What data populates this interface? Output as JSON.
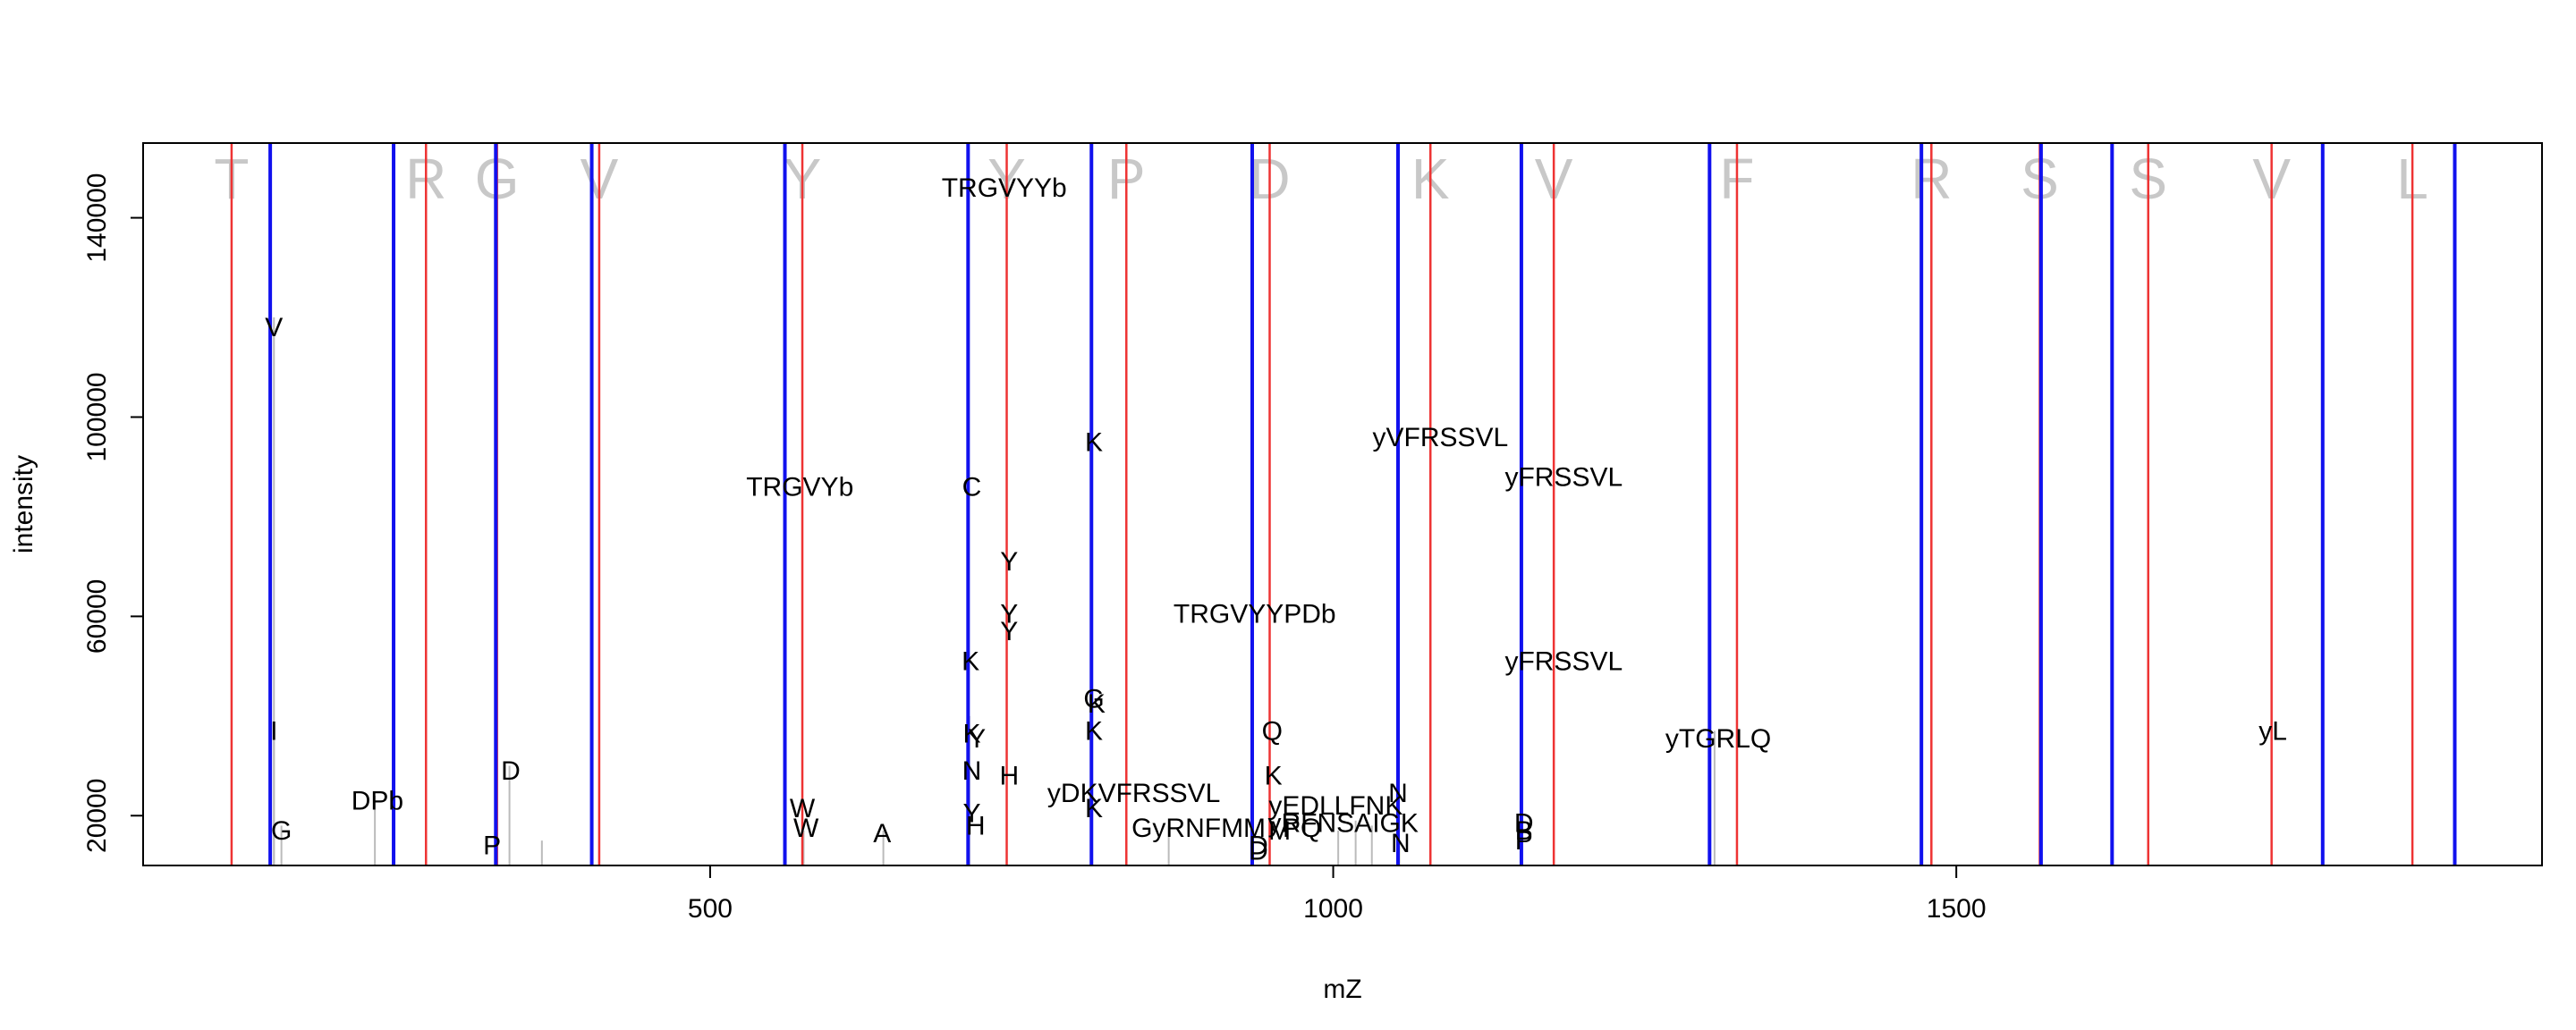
{
  "chart_data": {
    "type": "scatter",
    "title": "",
    "xlabel": "mZ",
    "ylabel": "intensity",
    "xlim": [
      45,
      1970
    ],
    "ylim": [
      10000,
      155000
    ],
    "xticks": [
      500,
      1000,
      1500
    ],
    "yticks": [
      20000,
      60000,
      100000,
      140000
    ],
    "colors": {
      "red_lines": "#ee3333",
      "blue_lines": "#1111ee",
      "peaks": "#bbbbbb",
      "sequence_letters": "#c8c8c8",
      "annotations": "#000000"
    },
    "sequence_letters": [
      {
        "x": 116,
        "label": "T"
      },
      {
        "x": 272,
        "label": "R"
      },
      {
        "x": 329,
        "label": "G"
      },
      {
        "x": 411,
        "label": "V"
      },
      {
        "x": 574,
        "label": "Y"
      },
      {
        "x": 738,
        "label": "Y"
      },
      {
        "x": 834,
        "label": "P"
      },
      {
        "x": 949,
        "label": "D"
      },
      {
        "x": 1078,
        "label": "K"
      },
      {
        "x": 1177,
        "label": "V"
      },
      {
        "x": 1324,
        "label": "F"
      },
      {
        "x": 1480,
        "label": "R"
      },
      {
        "x": 1567,
        "label": "S"
      },
      {
        "x": 1654,
        "label": "S"
      },
      {
        "x": 1753,
        "label": "V"
      },
      {
        "x": 1866,
        "label": "L"
      }
    ],
    "red_lines": [
      116,
      272,
      329,
      411,
      574,
      738,
      834,
      949,
      1078,
      1177,
      1324,
      1480,
      1567,
      1654,
      1753,
      1866
    ],
    "blue_lines": [
      147,
      246,
      328,
      405,
      560,
      707,
      806,
      935,
      1052,
      1151,
      1302,
      1472,
      1568,
      1625,
      1794,
      1900
    ],
    "peaks": [
      {
        "x": 150,
        "y": 120000
      },
      {
        "x": 150,
        "y": 38000
      },
      {
        "x": 156,
        "y": 18000
      },
      {
        "x": 231,
        "y": 24000
      },
      {
        "x": 339,
        "y": 30000
      },
      {
        "x": 365,
        "y": 15000
      },
      {
        "x": 575,
        "y": 17000
      },
      {
        "x": 639,
        "y": 17000
      },
      {
        "x": 708,
        "y": 40000
      },
      {
        "x": 868,
        "y": 18000
      },
      {
        "x": 1004,
        "y": 17000
      },
      {
        "x": 1018,
        "y": 19000
      },
      {
        "x": 1031,
        "y": 18000
      },
      {
        "x": 1053,
        "y": 15000
      },
      {
        "x": 1306,
        "y": 37000
      }
    ],
    "annotations": [
      {
        "x": 150,
        "y": 118000,
        "label": "V"
      },
      {
        "x": 150,
        "y": 37000,
        "label": "I"
      },
      {
        "x": 156,
        "y": 17000,
        "label": "G"
      },
      {
        "x": 233,
        "y": 23000,
        "label": "DPb"
      },
      {
        "x": 340,
        "y": 29000,
        "label": "D"
      },
      {
        "x": 325,
        "y": 14000,
        "label": "P"
      },
      {
        "x": 572,
        "y": 86000,
        "label": "TRGVYb"
      },
      {
        "x": 574,
        "y": 21500,
        "label": "W"
      },
      {
        "x": 577,
        "y": 17500,
        "label": "W"
      },
      {
        "x": 638,
        "y": 16500,
        "label": "A"
      },
      {
        "x": 736,
        "y": 146000,
        "label": "TRGVYYb"
      },
      {
        "x": 710,
        "y": 86000,
        "label": "C"
      },
      {
        "x": 709,
        "y": 51000,
        "label": "K"
      },
      {
        "x": 710,
        "y": 36500,
        "label": "K"
      },
      {
        "x": 714,
        "y": 35500,
        "label": "Y"
      },
      {
        "x": 710,
        "y": 29000,
        "label": "N"
      },
      {
        "x": 710,
        "y": 20500,
        "label": "Y"
      },
      {
        "x": 713,
        "y": 18000,
        "label": "H"
      },
      {
        "x": 740,
        "y": 71000,
        "label": "Y"
      },
      {
        "x": 740,
        "y": 60500,
        "label": "Y"
      },
      {
        "x": 740,
        "y": 57000,
        "label": "Y"
      },
      {
        "x": 740,
        "y": 28000,
        "label": "H"
      },
      {
        "x": 808,
        "y": 95000,
        "label": "K"
      },
      {
        "x": 808,
        "y": 43500,
        "label": "G"
      },
      {
        "x": 810,
        "y": 42500,
        "label": "K"
      },
      {
        "x": 808,
        "y": 37000,
        "label": "K"
      },
      {
        "x": 808,
        "y": 21500,
        "label": "K"
      },
      {
        "x": 840,
        "y": 24500,
        "label": "yDKVFRSSVL"
      },
      {
        "x": 892,
        "y": 17500,
        "label": "GyRNFMM"
      },
      {
        "x": 940,
        "y": 14000,
        "label": "D"
      },
      {
        "x": 940,
        "y": 13000,
        "label": "D"
      },
      {
        "x": 957,
        "y": 17000,
        "label": "M"
      },
      {
        "x": 975,
        "y": 17500,
        "label": "PQ"
      },
      {
        "x": 937,
        "y": 60500,
        "label": "TRGVYYPDb"
      },
      {
        "x": 951,
        "y": 37000,
        "label": "Q"
      },
      {
        "x": 952,
        "y": 28000,
        "label": "K"
      },
      {
        "x": 1002,
        "y": 22000,
        "label": "yEDLLFNK"
      },
      {
        "x": 1008,
        "y": 18500,
        "label": "yRFNSAIGK"
      },
      {
        "x": 1052,
        "y": 24500,
        "label": "N"
      },
      {
        "x": 1054,
        "y": 14500,
        "label": "N"
      },
      {
        "x": 1086,
        "y": 96000,
        "label": "yVFRSSVL"
      },
      {
        "x": 1185,
        "y": 88000,
        "label": "yFRSSVL"
      },
      {
        "x": 1185,
        "y": 51000,
        "label": "yFRSSVL"
      },
      {
        "x": 1153,
        "y": 18500,
        "label": "D"
      },
      {
        "x": 1153,
        "y": 17000,
        "label": "B"
      },
      {
        "x": 1153,
        "y": 15000,
        "label": "P"
      },
      {
        "x": 1309,
        "y": 35500,
        "label": "yTGRLQ"
      },
      {
        "x": 1754,
        "y": 37000,
        "label": "yL"
      }
    ]
  }
}
